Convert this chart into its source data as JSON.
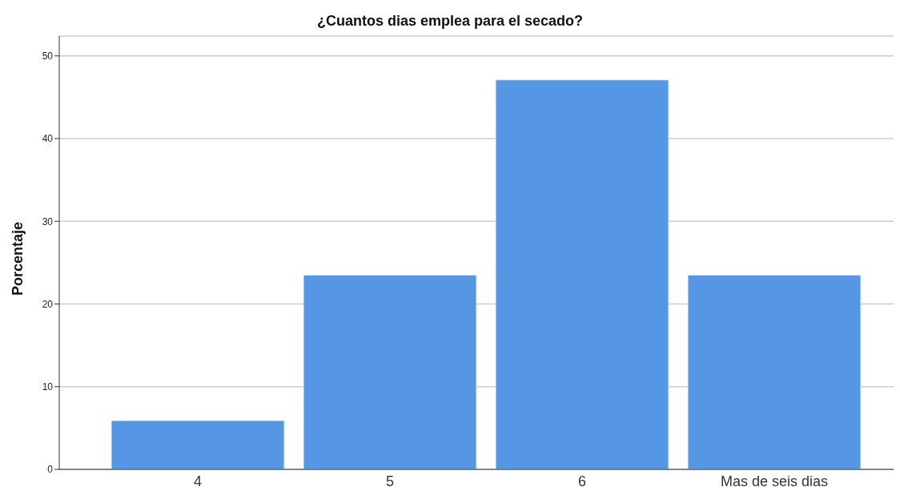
{
  "chart_data": {
    "type": "bar",
    "title": "¿Cuantos dias emplea para el secado?",
    "ylabel": "Porcentaje",
    "categories": [
      "4",
      "5",
      "6",
      "Mas de seis dias"
    ],
    "values": [
      5.9,
      23.5,
      47.1,
      23.5
    ],
    "color": "#5596e5",
    "ylim": [
      0,
      52.4
    ],
    "yticks": [
      0,
      10,
      20,
      30,
      40,
      50
    ],
    "grid": "y"
  }
}
